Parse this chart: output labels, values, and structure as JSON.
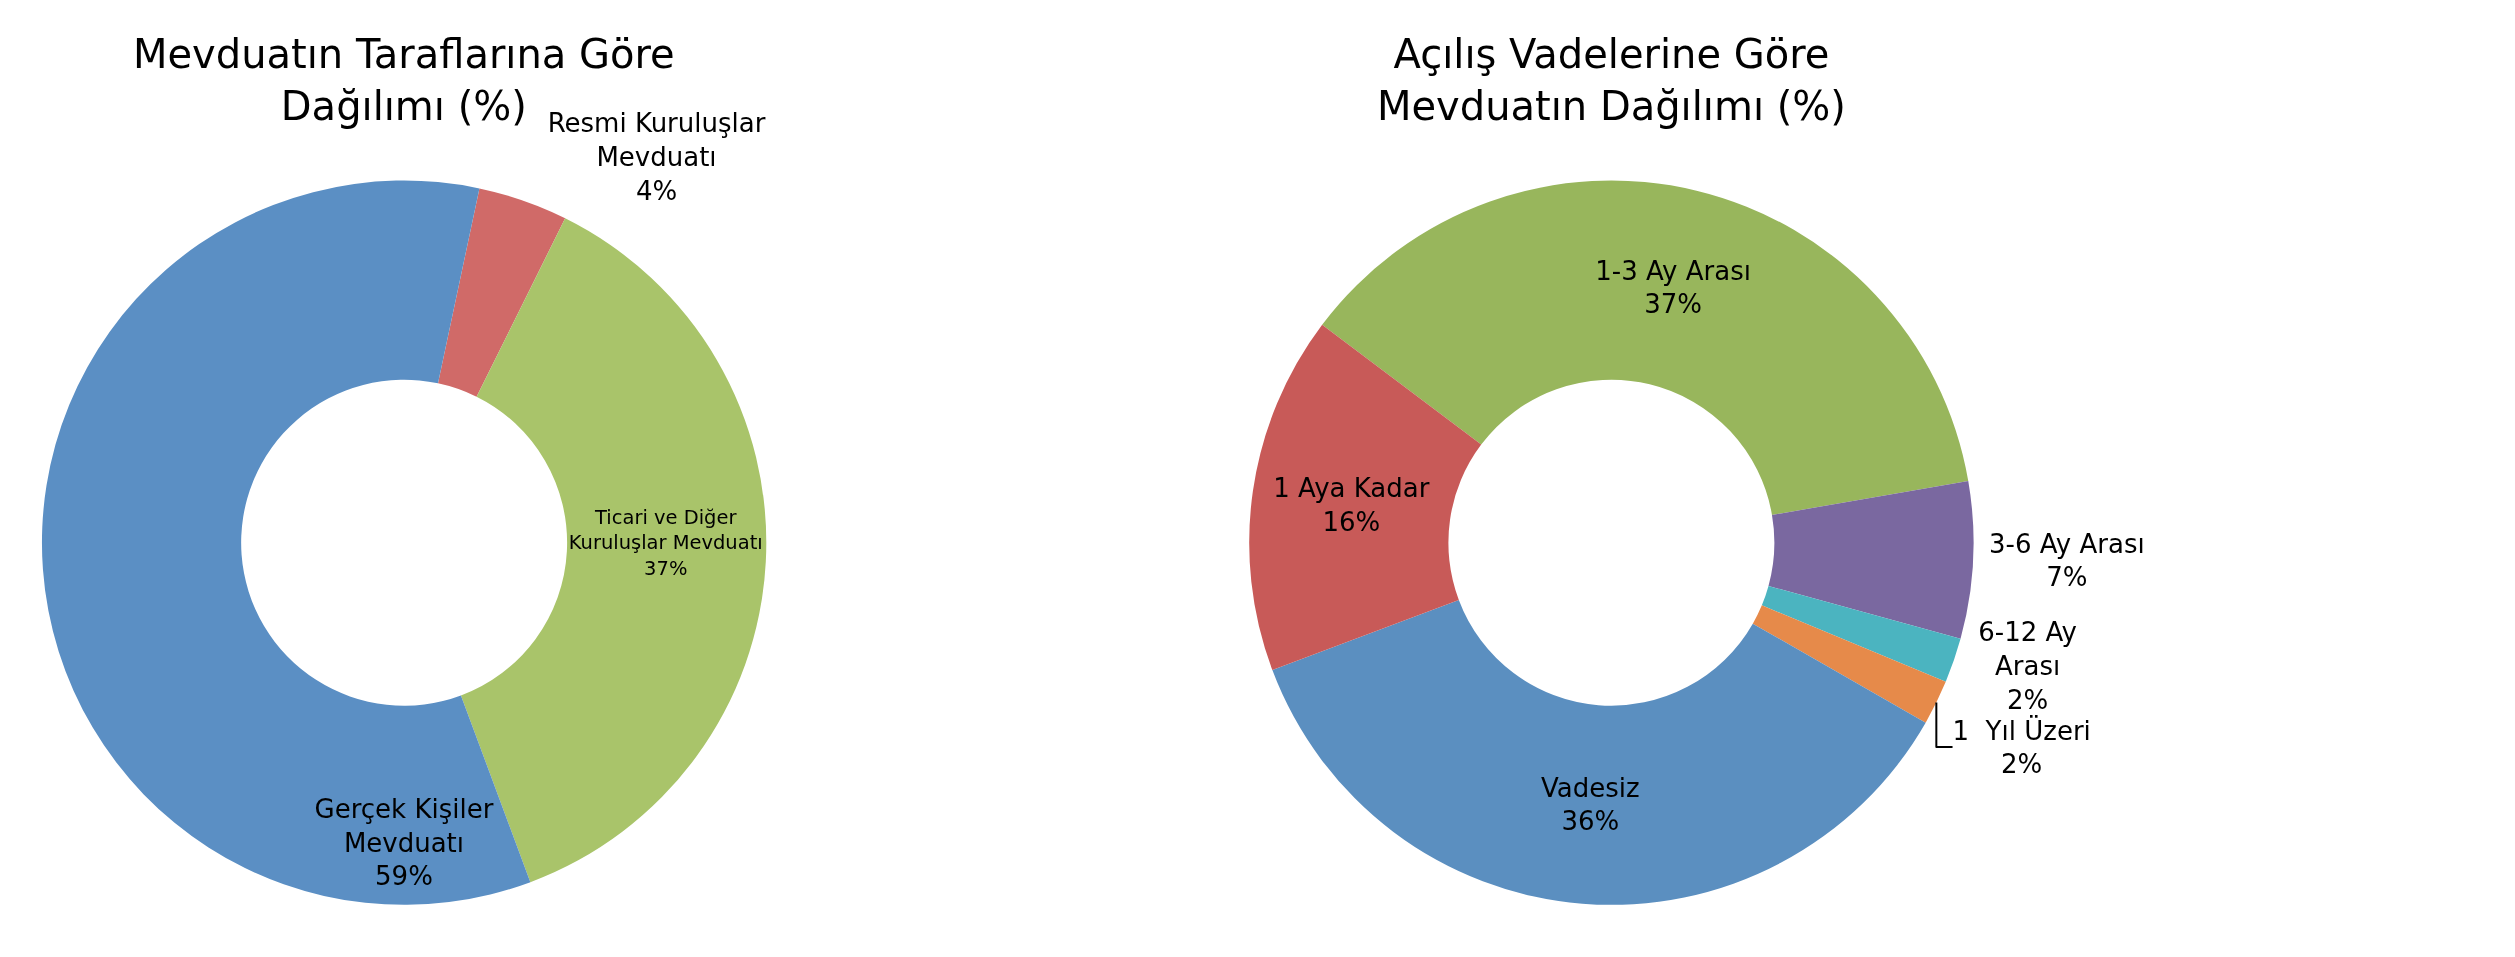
{
  "chart_data": [
    {
      "type": "donut",
      "title": "Mevduatın Taraflarına Göre Dağılımı (%)",
      "categories": [
        "Resmi Kuruluşlar Mevduatı",
        "Ticari ve Diğer Kuruluşlar Mevduatı",
        "Gerçek Kişiler Mevduatı"
      ],
      "values": [
        4,
        37,
        59
      ],
      "value_labels": [
        "4%",
        "37%",
        "59%"
      ],
      "colors": [
        "#d06a68",
        "#a9c46a",
        "#5b8fc4"
      ],
      "legend": false
    },
    {
      "type": "donut",
      "title": "Açılış Vadelerine Göre Mevduatın Dağılımı (%)",
      "categories": [
        "1-3 Ay Arası",
        "3-6 Ay Arası",
        "6-12 Ay Arası",
        "1  Yıl Üzeri",
        "Vadesiz",
        "1 Aya Kadar"
      ],
      "values": [
        37,
        7,
        2,
        2,
        36,
        16
      ],
      "value_labels": [
        "37%",
        "7%",
        "2%",
        "2%",
        "36%",
        "16%"
      ],
      "colors": [
        "#98b65c",
        "#7a68a0",
        "#4bb4c0",
        "#e68a4a",
        "#5b8fc0",
        "#c85a58"
      ],
      "legend": false
    }
  ]
}
